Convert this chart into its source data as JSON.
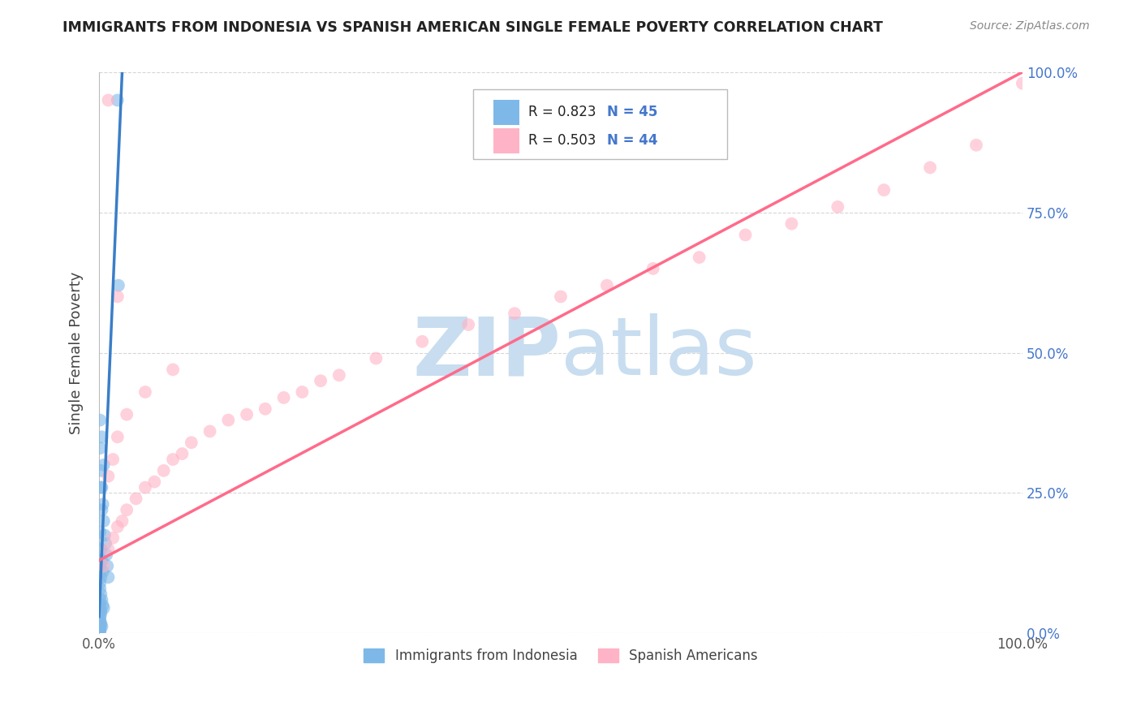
{
  "title": "IMMIGRANTS FROM INDONESIA VS SPANISH AMERICAN SINGLE FEMALE POVERTY CORRELATION CHART",
  "source": "Source: ZipAtlas.com",
  "ylabel": "Single Female Poverty",
  "xlim": [
    0,
    1.0
  ],
  "ylim": [
    0,
    1.0
  ],
  "legend_r1": "R = 0.823",
  "legend_n1": "N = 45",
  "legend_r2": "R = 0.503",
  "legend_n2": "N = 44",
  "series1_label": "Immigrants from Indonesia",
  "series2_label": "Spanish Americans",
  "color1": "#7EB8E8",
  "color2": "#FFB3C6",
  "line1_color": "#3A7EC8",
  "line2_color": "#FF6B8A",
  "title_color": "#222222",
  "stat_color": "#4477CC",
  "background_color": "#FFFFFF",
  "watermark_color": "#C8DDEF",
  "grid_color": "#CCCCCC",
  "blue_x": [
    0.02,
    0.021,
    0.005,
    0.003,
    0.001,
    0.002,
    0.003,
    0.004,
    0.005,
    0.006,
    0.007,
    0.008,
    0.009,
    0.01,
    0.001,
    0.002,
    0.003,
    0.001,
    0.002,
    0.003,
    0.004,
    0.001,
    0.002,
    0.001,
    0.001,
    0.002,
    0.003,
    0.004,
    0.005,
    0.001,
    0.001,
    0.002,
    0.001,
    0.002,
    0.001,
    0.001,
    0.001,
    0.002,
    0.002,
    0.003,
    0.001,
    0.001,
    0.001,
    0.001,
    0.001
  ],
  "blue_y": [
    0.95,
    0.62,
    0.3,
    0.35,
    0.38,
    0.29,
    0.26,
    0.23,
    0.2,
    0.175,
    0.16,
    0.14,
    0.12,
    0.1,
    0.33,
    0.26,
    0.22,
    0.18,
    0.15,
    0.13,
    0.11,
    0.12,
    0.1,
    0.09,
    0.08,
    0.07,
    0.06,
    0.05,
    0.045,
    0.06,
    0.05,
    0.04,
    0.04,
    0.035,
    0.03,
    0.025,
    0.02,
    0.018,
    0.015,
    0.012,
    0.01,
    0.008,
    0.006,
    0.005,
    0.003
  ],
  "pink_x": [
    0.005,
    0.01,
    0.015,
    0.02,
    0.025,
    0.03,
    0.04,
    0.05,
    0.06,
    0.07,
    0.08,
    0.09,
    0.1,
    0.12,
    0.14,
    0.16,
    0.18,
    0.2,
    0.22,
    0.24,
    0.26,
    0.3,
    0.35,
    0.4,
    0.45,
    0.5,
    0.55,
    0.6,
    0.65,
    0.7,
    0.75,
    0.8,
    0.85,
    0.9,
    0.95,
    1.0,
    0.01,
    0.015,
    0.02,
    0.03,
    0.05,
    0.08,
    0.01,
    0.02
  ],
  "pink_y": [
    0.12,
    0.15,
    0.17,
    0.19,
    0.2,
    0.22,
    0.24,
    0.26,
    0.27,
    0.29,
    0.31,
    0.32,
    0.34,
    0.36,
    0.38,
    0.39,
    0.4,
    0.42,
    0.43,
    0.45,
    0.46,
    0.49,
    0.52,
    0.55,
    0.57,
    0.6,
    0.62,
    0.65,
    0.67,
    0.71,
    0.73,
    0.76,
    0.79,
    0.83,
    0.87,
    0.98,
    0.28,
    0.31,
    0.35,
    0.39,
    0.43,
    0.47,
    0.95,
    0.6
  ],
  "blue_line_x": [
    0.0,
    0.025
  ],
  "blue_line_y": [
    0.03,
    1.0
  ],
  "pink_line_x": [
    0.0,
    1.0
  ],
  "pink_line_y": [
    0.13,
    1.0
  ]
}
